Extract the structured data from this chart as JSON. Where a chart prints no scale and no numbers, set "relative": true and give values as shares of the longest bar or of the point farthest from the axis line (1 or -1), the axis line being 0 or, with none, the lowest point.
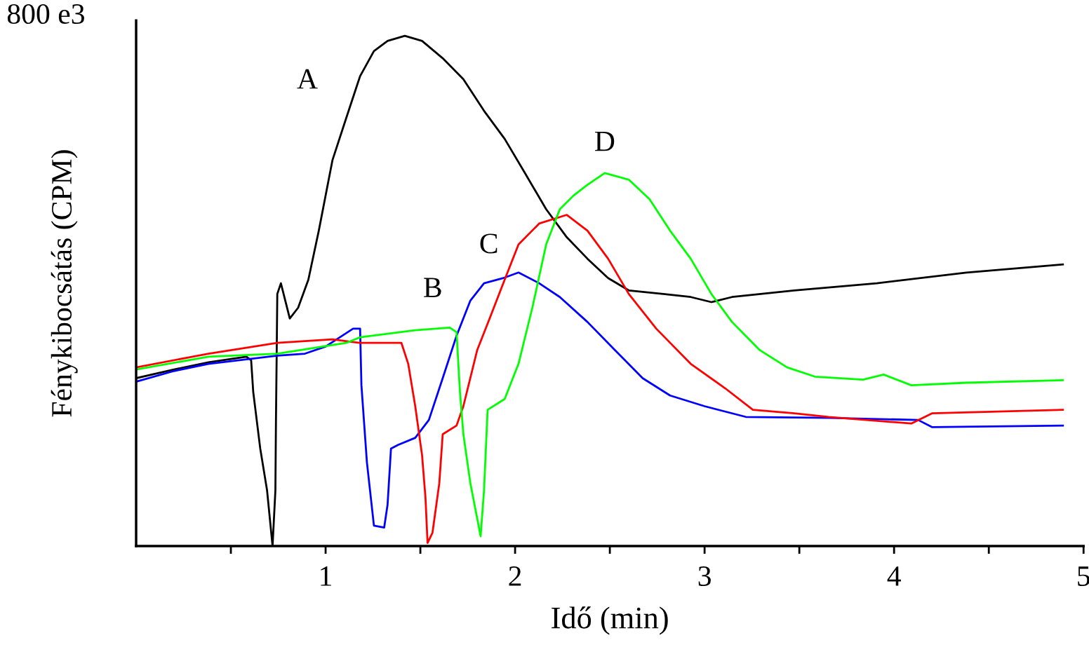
{
  "chart_data": {
    "type": "line",
    "relative": true,
    "xlabel": "Idő (min)",
    "ylabel": "Fénykibocsátás (CPM)",
    "annotations": [
      "800 e3"
    ],
    "xlim": [
      0,
      5
    ],
    "xticks": [
      {
        "value": 0.5,
        "label": null
      },
      1,
      {
        "value": 1.5,
        "label": null
      },
      2,
      {
        "value": 2.5,
        "label": null
      },
      3,
      {
        "value": 3.5,
        "label": null
      },
      4,
      {
        "value": 4.5,
        "label": null
      },
      5
    ],
    "grid": false,
    "legend": false,
    "series": [
      {
        "name": "A",
        "color": "#000000",
        "x": [
          0,
          0.2,
          0.382,
          0.582,
          0.607,
          0.618,
          0.655,
          0.691,
          0.72,
          0.735,
          0.738,
          0.742,
          0.745,
          0.764,
          0.811,
          0.855,
          0.909,
          0.964,
          1.036,
          1.109,
          1.182,
          1.255,
          1.327,
          1.418,
          1.509,
          1.618,
          1.727,
          1.836,
          1.945,
          2.055,
          2.164,
          2.273,
          2.382,
          2.491,
          2.6,
          2.782,
          2.927,
          3.036,
          3.145,
          3.473,
          3.909,
          4.382,
          4.891
        ],
        "values": [
          0.329,
          0.346,
          0.36,
          0.371,
          0.364,
          0.302,
          0.191,
          0.109,
          0,
          0.109,
          0.247,
          0.384,
          0.494,
          0.515,
          0.446,
          0.467,
          0.522,
          0.618,
          0.756,
          0.839,
          0.921,
          0.97,
          0.99,
          1,
          0.99,
          0.956,
          0.915,
          0.853,
          0.798,
          0.729,
          0.66,
          0.605,
          0.563,
          0.525,
          0.501,
          0.494,
          0.488,
          0.478,
          0.488,
          0.501,
          0.515,
          0.536,
          0.552
        ]
      },
      {
        "name": "B",
        "color": "#0000ff",
        "x": [
          0,
          0.2,
          0.382,
          0.745,
          0.891,
          1.0,
          1.145,
          1.182,
          1.189,
          1.218,
          1.255,
          1.309,
          1.327,
          1.345,
          1.382,
          1.473,
          1.545,
          1.618,
          1.691,
          1.764,
          1.836,
          1.945,
          2.018,
          2.127,
          2.236,
          2.382,
          2.527,
          2.673,
          2.818,
          3.0,
          3.218,
          3.655,
          4.127,
          4.2,
          4.891
        ],
        "values": [
          0.322,
          0.343,
          0.357,
          0.373,
          0.377,
          0.391,
          0.426,
          0.426,
          0.315,
          0.164,
          0.04,
          0.036,
          0.081,
          0.191,
          0.198,
          0.212,
          0.247,
          0.329,
          0.412,
          0.481,
          0.515,
          0.526,
          0.536,
          0.515,
          0.488,
          0.439,
          0.384,
          0.329,
          0.295,
          0.274,
          0.253,
          0.251,
          0.247,
          0.233,
          0.236
        ]
      },
      {
        "name": "C",
        "color": "#ff0000",
        "x": [
          0,
          0.382,
          0.745,
          1.036,
          1.182,
          1.4,
          1.436,
          1.473,
          1.509,
          1.527,
          1.538,
          1.564,
          1.6,
          1.618,
          1.691,
          1.727,
          1.8,
          1.873,
          1.945,
          2.018,
          2.127,
          2.273,
          2.382,
          2.491,
          2.6,
          2.745,
          2.927,
          3.109,
          3.255,
          3.473,
          3.655,
          4.091,
          4.2,
          4.891
        ],
        "values": [
          0.35,
          0.377,
          0.398,
          0.405,
          0.398,
          0.398,
          0.357,
          0.274,
          0.178,
          0.095,
          0.006,
          0.026,
          0.123,
          0.219,
          0.236,
          0.274,
          0.384,
          0.453,
          0.522,
          0.591,
          0.632,
          0.649,
          0.618,
          0.563,
          0.494,
          0.426,
          0.357,
          0.309,
          0.267,
          0.26,
          0.253,
          0.24,
          0.26,
          0.267
        ]
      },
      {
        "name": "D",
        "color": "#00ff00",
        "x": [
          0,
          0.382,
          0.745,
          1.109,
          1.182,
          1.473,
          1.655,
          1.691,
          1.709,
          1.727,
          1.764,
          1.8,
          1.818,
          1.836,
          1.855,
          1.945,
          2.018,
          2.091,
          2.164,
          2.236,
          2.309,
          2.382,
          2.473,
          2.6,
          2.709,
          2.818,
          2.927,
          3.036,
          3.145,
          3.291,
          3.436,
          3.582,
          3.836,
          3.945,
          4.091,
          4.382,
          4.891
        ],
        "values": [
          0.346,
          0.371,
          0.377,
          0.398,
          0.409,
          0.423,
          0.428,
          0.419,
          0.302,
          0.219,
          0.123,
          0.054,
          0.019,
          0.109,
          0.267,
          0.288,
          0.357,
          0.467,
          0.591,
          0.66,
          0.687,
          0.708,
          0.731,
          0.718,
          0.68,
          0.618,
          0.563,
          0.494,
          0.439,
          0.384,
          0.35,
          0.332,
          0.326,
          0.336,
          0.315,
          0.32,
          0.325
        ]
      }
    ]
  }
}
